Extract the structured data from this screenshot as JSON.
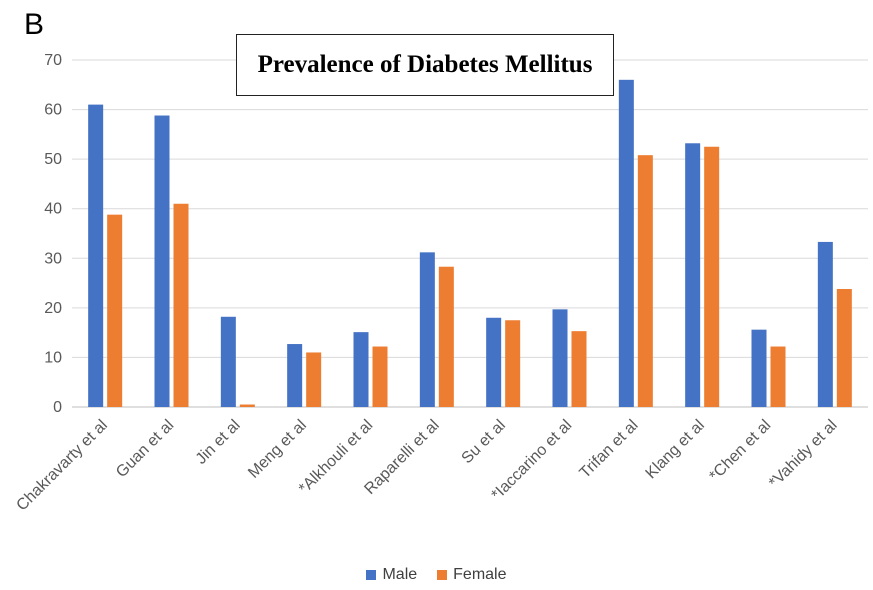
{
  "panel_label": "B",
  "chart_data": {
    "type": "bar",
    "title": "Prevalence of Diabetes Mellitus",
    "xlabel": "",
    "ylabel": "",
    "ylim": [
      0,
      70
    ],
    "yticks": [
      0,
      10,
      20,
      30,
      40,
      50,
      60,
      70
    ],
    "grid": true,
    "legend_position": "bottom",
    "categories": [
      "Chakravarty et al",
      "Guan et al",
      "Jin et al",
      "Meng et al",
      "*Alkhouli et al",
      "Raparelli et al",
      "Su et al",
      "*Iaccarino et al",
      "Trifan et al",
      "Klang et al",
      "*Chen et al",
      "*Vahidy et al"
    ],
    "series": [
      {
        "name": "Male",
        "color": "#4472C4",
        "values": [
          61,
          58.8,
          18.2,
          12.7,
          15.1,
          31.2,
          18,
          19.7,
          66,
          53.2,
          15.6,
          33.3
        ]
      },
      {
        "name": "Female",
        "color": "#ED7D31",
        "values": [
          38.8,
          41,
          0.5,
          11,
          12.2,
          28.3,
          17.5,
          15.3,
          50.8,
          52.5,
          12.2,
          23.8
        ]
      }
    ]
  }
}
